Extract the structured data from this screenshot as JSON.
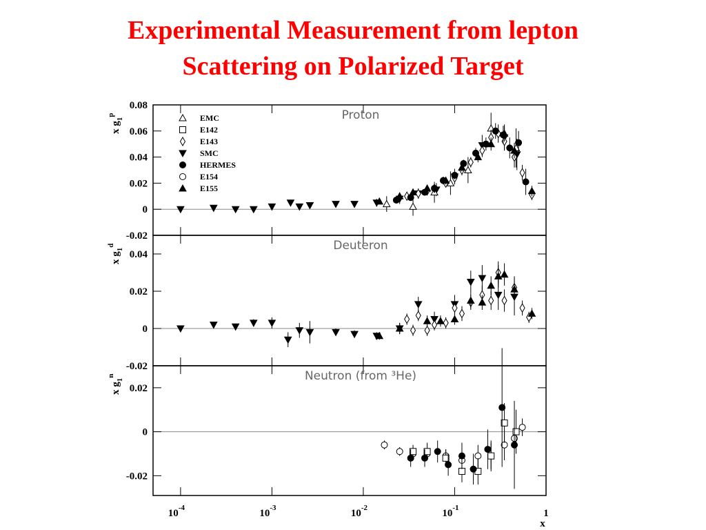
{
  "chart_data": {
    "type": "scatter",
    "title": [
      "Experimental Measurement from lepton",
      "Scattering on Polarized Target"
    ],
    "title_color": "#ff0000",
    "x_label": "x",
    "xscale": "log",
    "xlim": [
      5e-05,
      1
    ],
    "xticks": [
      {
        "value": 0.0001,
        "label": "10",
        "exp": "-4"
      },
      {
        "value": 0.001,
        "label": "10",
        "exp": "-3"
      },
      {
        "value": 0.01,
        "label": "10",
        "exp": "-2"
      },
      {
        "value": 0.1,
        "label": "10",
        "exp": "-1"
      },
      1
    ],
    "legend_corner": "upper left",
    "legend": [
      {
        "name": "EMC",
        "marker": "open-triangle"
      },
      {
        "name": "E142",
        "marker": "open-square"
      },
      {
        "name": "E143",
        "marker": "open-diamond"
      },
      {
        "name": "SMC",
        "marker": "filled-down-triangle"
      },
      {
        "name": "HERMES",
        "marker": "filled-circle"
      },
      {
        "name": "E154",
        "marker": "open-circle"
      },
      {
        "name": "E155",
        "marker": "filled-triangle"
      }
    ],
    "color": "#000000",
    "panels": [
      {
        "label": "Proton",
        "y_label": {
          "base": "x g",
          "sub": "1",
          "sup": "p"
        },
        "ylim": [
          -0.02,
          0.08
        ],
        "yticks": [
          -0.02,
          0,
          0.02,
          0.04,
          0.06,
          0.08
        ],
        "series": [
          {
            "marker": "filled-down-triangle",
            "x": [
              0.0001,
              0.00023,
              0.0004,
              0.00063,
              0.001,
              0.0016,
              0.002,
              0.0026,
              0.005,
              0.008,
              0.014,
              0.025,
              0.04,
              0.063,
              0.1,
              0.2,
              0.35,
              0.48
            ],
            "values": [
              0.0,
              0.001,
              0.0,
              0.0,
              0.002,
              0.005,
              0.002,
              0.003,
              0.004,
              0.004,
              0.005,
              0.008,
              0.012,
              0.015,
              0.025,
              0.049,
              0.055,
              0.042
            ],
            "errors": [
              0.001,
              0.001,
              0.001,
              0.001,
              0.001,
              0.001,
              0.002,
              0.002,
              0.002,
              0.002,
              0.003,
              0.004,
              0.004,
              0.005,
              0.006,
              0.008,
              0.01,
              0.012
            ]
          },
          {
            "marker": "open-triangle",
            "x": [
              0.018,
              0.035,
              0.06,
              0.09,
              0.14,
              0.25,
              0.47
            ],
            "values": [
              0.004,
              0.002,
              0.013,
              0.02,
              0.03,
              0.062,
              0.047
            ],
            "errors": [
              0.006,
              0.007,
              0.008,
              0.009,
              0.01,
              0.012,
              0.015
            ]
          },
          {
            "marker": "open-diamond",
            "x": [
              0.03,
              0.04,
              0.05,
              0.06,
              0.08,
              0.1,
              0.12,
              0.15,
              0.2,
              0.25,
              0.3,
              0.35,
              0.45,
              0.55,
              0.7
            ],
            "values": [
              0.01,
              0.012,
              0.014,
              0.016,
              0.02,
              0.024,
              0.03,
              0.036,
              0.045,
              0.055,
              0.058,
              0.052,
              0.04,
              0.028,
              0.011
            ],
            "errors": [
              0.003,
              0.003,
              0.003,
              0.003,
              0.003,
              0.003,
              0.004,
              0.004,
              0.005,
              0.006,
              0.007,
              0.007,
              0.008,
              0.006,
              0.004
            ]
          },
          {
            "marker": "filled-circle",
            "x": [
              0.023,
              0.033,
              0.047,
              0.06,
              0.075,
              0.1,
              0.125,
              0.17,
              0.22,
              0.28,
              0.34,
              0.4,
              0.5,
              0.6
            ],
            "values": [
              0.007,
              0.009,
              0.013,
              0.016,
              0.022,
              0.026,
              0.035,
              0.043,
              0.05,
              0.06,
              0.057,
              0.047,
              0.051,
              0.021
            ],
            "errors": [
              0.002,
              0.002,
              0.002,
              0.002,
              0.003,
              0.003,
              0.003,
              0.004,
              0.005,
              0.006,
              0.007,
              0.008,
              0.009,
              0.01
            ]
          },
          {
            "marker": "filled-triangle",
            "x": [
              0.015,
              0.025,
              0.035,
              0.05,
              0.08,
              0.12,
              0.18,
              0.25,
              0.35,
              0.45,
              0.7
            ],
            "values": [
              0.006,
              0.01,
              0.013,
              0.016,
              0.022,
              0.032,
              0.04,
              0.05,
              0.058,
              0.045,
              0.014
            ],
            "errors": [
              0.002,
              0.002,
              0.002,
              0.002,
              0.003,
              0.003,
              0.004,
              0.005,
              0.006,
              0.006,
              0.004
            ]
          }
        ]
      },
      {
        "label": "Deuteron",
        "y_label": {
          "base": "x g",
          "sub": "1",
          "sup": "d"
        },
        "ylim": [
          -0.02,
          0.05
        ],
        "yticks": [
          -0.02,
          0,
          0.02,
          0.04
        ],
        "series": [
          {
            "marker": "filled-down-triangle",
            "x": [
              0.0001,
              0.00023,
              0.0004,
              0.00063,
              0.001,
              0.0015,
              0.002,
              0.0026,
              0.005,
              0.008,
              0.014,
              0.025,
              0.04,
              0.06,
              0.1,
              0.15,
              0.2,
              0.3,
              0.45
            ],
            "values": [
              0.0,
              0.002,
              0.001,
              0.003,
              0.003,
              -0.006,
              -0.001,
              -0.002,
              -0.002,
              -0.003,
              -0.004,
              0.0,
              0.013,
              0.005,
              0.013,
              0.025,
              0.027,
              0.018,
              0.017
            ],
            "errors": [
              0.001,
              0.001,
              0.001,
              0.002,
              0.003,
              0.004,
              0.004,
              0.006,
              0.002,
              0.002,
              0.002,
              0.003,
              0.004,
              0.004,
              0.005,
              0.006,
              0.007,
              0.008,
              0.01
            ]
          },
          {
            "marker": "open-diamond",
            "x": [
              0.03,
              0.035,
              0.04,
              0.05,
              0.06,
              0.08,
              0.1,
              0.12,
              0.15,
              0.2,
              0.25,
              0.3,
              0.35,
              0.45,
              0.55,
              0.65
            ],
            "values": [
              0.005,
              -0.001,
              0.007,
              -0.001,
              0.002,
              0.003,
              0.011,
              0.008,
              0.014,
              0.018,
              0.015,
              0.03,
              0.015,
              0.022,
              0.011,
              0.006
            ],
            "errors": [
              0.003,
              0.003,
              0.003,
              0.003,
              0.003,
              0.003,
              0.004,
              0.004,
              0.004,
              0.005,
              0.005,
              0.006,
              0.006,
              0.006,
              0.004,
              0.003
            ]
          },
          {
            "marker": "filled-triangle",
            "x": [
              0.015,
              0.025,
              0.05,
              0.07,
              0.1,
              0.15,
              0.2,
              0.25,
              0.3,
              0.35,
              0.45,
              0.7
            ],
            "values": [
              -0.004,
              0.0,
              0.004,
              0.004,
              0.005,
              0.015,
              0.014,
              0.023,
              0.028,
              0.029,
              0.021,
              0.008
            ],
            "errors": [
              0.002,
              0.003,
              0.003,
              0.003,
              0.003,
              0.004,
              0.004,
              0.005,
              0.006,
              0.006,
              0.005,
              0.003
            ]
          }
        ]
      },
      {
        "label": "Neutron (from ³He)",
        "y_label": {
          "base": "x g",
          "sub": "1",
          "sup": "n"
        },
        "ylim": [
          -0.029,
          0.03
        ],
        "yticks": [
          -0.02,
          0,
          0.02
        ],
        "series": [
          {
            "marker": "open-circle",
            "x": [
              0.017,
              0.025,
              0.035,
              0.05,
              0.08,
              0.12,
              0.18,
              0.25,
              0.35,
              0.45,
              0.55
            ],
            "values": [
              -0.006,
              -0.009,
              -0.01,
              -0.01,
              -0.011,
              -0.013,
              -0.011,
              -0.011,
              -0.006,
              -0.003,
              0.002
            ],
            "errors": [
              0.002,
              0.002,
              0.002,
              0.002,
              0.003,
              0.004,
              0.005,
              0.006,
              0.007,
              0.005,
              0.004
            ]
          },
          {
            "marker": "open-square",
            "x": [
              0.035,
              0.05,
              0.08,
              0.12,
              0.18,
              0.25,
              0.35,
              0.47
            ],
            "values": [
              -0.009,
              -0.009,
              -0.012,
              -0.018,
              -0.018,
              -0.011,
              0.004,
              0.0
            ],
            "errors": [
              0.003,
              0.004,
              0.004,
              0.005,
              0.006,
              0.007,
              0.009,
              0.01
            ]
          },
          {
            "marker": "filled-circle",
            "x": [
              0.033,
              0.047,
              0.065,
              0.085,
              0.12,
              0.16,
              0.23,
              0.33,
              0.45
            ],
            "values": [
              -0.012,
              -0.012,
              -0.009,
              -0.015,
              -0.011,
              -0.017,
              -0.008,
              0.011,
              -0.006
            ],
            "errors": [
              0.004,
              0.004,
              0.005,
              0.005,
              0.006,
              0.007,
              0.009,
              0.027,
              0.02
            ]
          }
        ]
      }
    ]
  }
}
